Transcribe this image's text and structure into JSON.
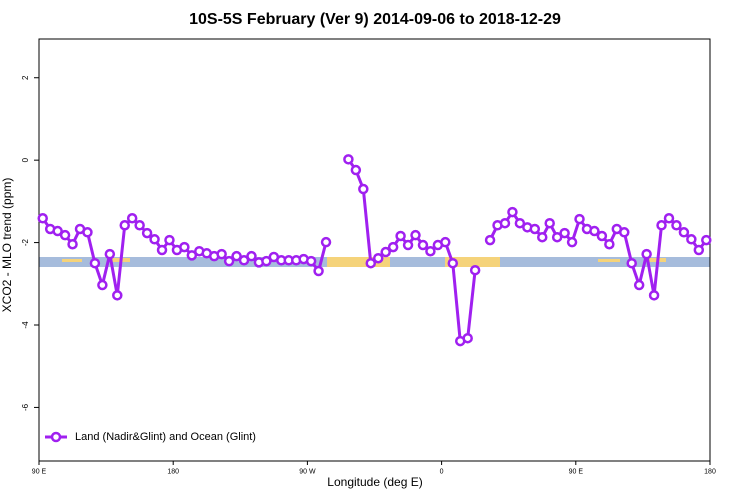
{
  "chart_data": {
    "type": "line",
    "title": "10S-5S February (Ver 9)   2014-09-06 to 2018-12-29",
    "xlabel": "Longitude (deg E)",
    "ylabel": "XCO2 - MLO trend (ppm)",
    "x": [
      92.5,
      97.5,
      102.5,
      107.5,
      112.5,
      117.5,
      122.5,
      127.5,
      132.5,
      137.5,
      142.5,
      147.5,
      152.5,
      157.5,
      162.5,
      167.5,
      172.5,
      177.5,
      182.5,
      187.5,
      192.5,
      197.5,
      202.5,
      207.5,
      212.5,
      217.5,
      222.5,
      227.5,
      232.5,
      237.5,
      242.5,
      247.5,
      252.5,
      257.5,
      262.5,
      267.5,
      272.5,
      277.5,
      282.5,
      287.5,
      292.5,
      297.5,
      302.5,
      307.5,
      312.5,
      317.5,
      322.5,
      327.5,
      332.5,
      337.5,
      342.5,
      347.5,
      352.5,
      357.5,
      362.5,
      367.5,
      372.5,
      377.5,
      382.5,
      387.5,
      392.5,
      397.5,
      402.5,
      407.5,
      412.5,
      417.5,
      422.5,
      427.5,
      432.5,
      437.5,
      442.5,
      447.5,
      452.5,
      457.5,
      462.5,
      467.5,
      472.5,
      477.5,
      482.5,
      487.5,
      492.5,
      497.5,
      502.5,
      507.5,
      512.5,
      517.5,
      522.5,
      527.5,
      532.5,
      537.5
    ],
    "series": [
      {
        "name": "Land (Nadir&Glint) and Ocean (Glint)",
        "color": "#a020f0",
        "values": [
          -1.41,
          -1.67,
          -1.72,
          -1.82,
          -2.04,
          -1.67,
          -1.75,
          -2.5,
          -3.03,
          -2.28,
          -3.28,
          -1.58,
          -1.41,
          -1.58,
          -1.77,
          -1.92,
          -2.18,
          -1.94,
          -2.18,
          -2.11,
          -2.31,
          -2.21,
          -2.26,
          -2.33,
          -2.28,
          -2.45,
          -2.33,
          -2.43,
          -2.33,
          -2.48,
          -2.45,
          -2.35,
          -2.43,
          -2.43,
          -2.43,
          -2.4,
          -2.45,
          -2.69,
          -1.99,
          null,
          null,
          0.02,
          -0.24,
          -0.7,
          -2.5,
          -2.38,
          -2.23,
          -2.11,
          -1.84,
          -2.06,
          -1.82,
          -2.06,
          -2.21,
          -2.06,
          -1.99,
          -2.5,
          -4.39,
          -4.32,
          -2.67,
          null,
          -1.94,
          -1.58,
          -1.53,
          -1.26,
          -1.53,
          -1.63,
          -1.67,
          -1.87,
          -1.53,
          -1.87,
          -1.77,
          -1.99,
          -1.43,
          -1.67,
          -1.72,
          -1.84,
          -2.04,
          -1.67,
          -1.75,
          -2.5,
          -3.03,
          -2.28,
          -3.28,
          -1.58,
          -1.41,
          -1.58,
          -1.75,
          -1.92,
          -2.18,
          -1.94
        ]
      }
    ],
    "xlim": [
      90,
      540
    ],
    "xticks": [
      {
        "value": 90,
        "label": "90 E"
      },
      180,
      {
        "value": 270,
        "label": "90 W"
      },
      {
        "value": 360,
        "label": "0"
      },
      {
        "value": 450,
        "label": "90 E"
      },
      {
        "value": 540,
        "label": "180"
      }
    ],
    "ylim": [
      -7.3,
      2.94
    ],
    "yticks": [
      -6,
      -4,
      -2,
      0,
      2
    ],
    "legend": "bottom-left"
  }
}
